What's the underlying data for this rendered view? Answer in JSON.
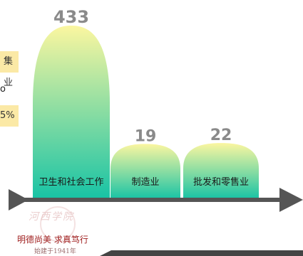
{
  "left_fragments": [
    "集业",
    "o",
    "5%"
  ],
  "chart_data": {
    "type": "bar",
    "categories": [
      "卫生和社会工作",
      "制造业",
      "批发和零售业"
    ],
    "values": [
      433,
      19,
      22
    ],
    "title": "",
    "xlabel": "",
    "ylabel": "",
    "ylim": [
      0,
      433
    ],
    "grid": false,
    "legend": "none",
    "colors": {
      "bar_top": "#fbf6a0",
      "bar_bottom": "#17c3a5",
      "axis": "#555555",
      "value_text": "#8a8a8a"
    }
  },
  "logo": {
    "brush_text": "河西学院",
    "motto": "明德尚美  求真笃行",
    "founded": "始建于1941年"
  }
}
